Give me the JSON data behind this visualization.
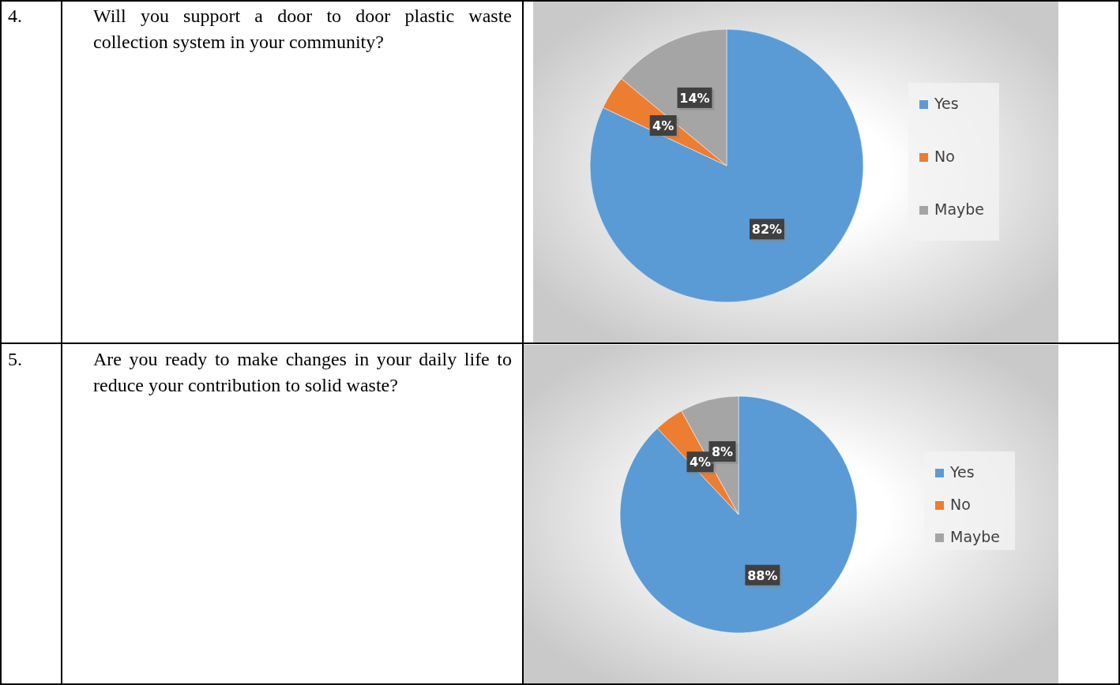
{
  "chart_data": [
    {
      "type": "pie",
      "title": "Will you support a door to door plastic waste collection system in your community?",
      "annotations": [
        "4."
      ],
      "categories": [
        "Yes",
        "No",
        "Maybe"
      ],
      "values": [
        82,
        4,
        14
      ],
      "colors": [
        "#5b9bd5",
        "#ed7d31",
        "#a5a5a5"
      ],
      "value_labels": [
        "82%",
        "4%",
        "14%"
      ],
      "legend": "right"
    },
    {
      "type": "pie",
      "title": "Are you ready to make changes in your daily life to reduce your contribution to solid waste?",
      "annotations": [
        "5."
      ],
      "categories": [
        "Yes",
        "No",
        "Maybe"
      ],
      "values": [
        88,
        4,
        8
      ],
      "colors": [
        "#5b9bd5",
        "#ed7d31",
        "#a5a5a5"
      ],
      "value_labels": [
        "88%",
        "4%",
        "8%"
      ],
      "legend": "right"
    }
  ]
}
